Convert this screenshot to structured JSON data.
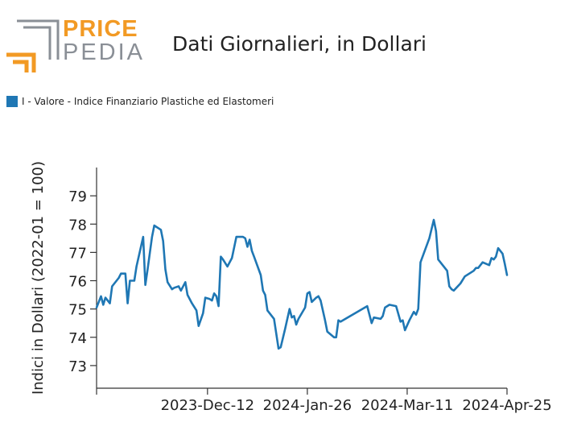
{
  "header": {
    "logo_price": "PRICE",
    "logo_pedia": "PEDIA",
    "title": "Dati Giornalieri, in Dollari"
  },
  "colors": {
    "series": "#1f77b4",
    "logo_orange": "#f29a24",
    "logo_gray": "#8a8f96"
  },
  "chart_data": {
    "type": "line",
    "title": "Dati Giornalieri, in Dollari",
    "ylabel": "Indici in Dollari (2022-01 = 100)",
    "xlabel": "",
    "ylim": [
      72.2,
      80.0
    ],
    "yticks": [
      73,
      74,
      75,
      76,
      77,
      78,
      79
    ],
    "xlim": [
      "2023-10-23",
      "2024-04-25"
    ],
    "xticks": [
      {
        "date": "2023-10-23",
        "label": ""
      },
      {
        "date": "2023-12-12",
        "label": "2023-Dec-12"
      },
      {
        "date": "2024-01-26",
        "label": "2024-Jan-26"
      },
      {
        "date": "2024-03-11",
        "label": "2024-Mar-11"
      },
      {
        "date": "2024-04-25",
        "label": "2024-Apr-25"
      }
    ],
    "grid": false,
    "legend_position": "top-left",
    "series": [
      {
        "name": "I - Valore - Indice Finanziario Plastiche ed Elastomeri",
        "points": [
          [
            "2023-10-23",
            75.05
          ],
          [
            "2023-10-25",
            75.45
          ],
          [
            "2023-10-26",
            75.15
          ],
          [
            "2023-10-27",
            75.4
          ],
          [
            "2023-10-29",
            75.2
          ],
          [
            "2023-10-30",
            75.8
          ],
          [
            "2023-11-02",
            76.1
          ],
          [
            "2023-11-03",
            76.25
          ],
          [
            "2023-11-05",
            76.25
          ],
          [
            "2023-11-06",
            75.2
          ],
          [
            "2023-11-07",
            76.0
          ],
          [
            "2023-11-09",
            76.0
          ],
          [
            "2023-11-10",
            76.5
          ],
          [
            "2023-11-13",
            77.55
          ],
          [
            "2023-11-14",
            75.85
          ],
          [
            "2023-11-15",
            76.4
          ],
          [
            "2023-11-17",
            77.55
          ],
          [
            "2023-11-18",
            77.95
          ],
          [
            "2023-11-21",
            77.8
          ],
          [
            "2023-11-22",
            77.4
          ],
          [
            "2023-11-23",
            76.4
          ],
          [
            "2023-11-24",
            75.95
          ],
          [
            "2023-11-26",
            75.7
          ],
          [
            "2023-11-27",
            75.75
          ],
          [
            "2023-11-29",
            75.8
          ],
          [
            "2023-11-30",
            75.65
          ],
          [
            "2023-12-02",
            75.95
          ],
          [
            "2023-12-03",
            75.5
          ],
          [
            "2023-12-05",
            75.2
          ],
          [
            "2023-12-07",
            74.95
          ],
          [
            "2023-12-08",
            74.4
          ],
          [
            "2023-12-10",
            74.85
          ],
          [
            "2023-12-11",
            75.4
          ],
          [
            "2023-12-13",
            75.35
          ],
          [
            "2023-12-14",
            75.3
          ],
          [
            "2023-12-15",
            75.55
          ],
          [
            "2023-12-16",
            75.45
          ],
          [
            "2023-12-17",
            75.1
          ],
          [
            "2023-12-18",
            76.85
          ],
          [
            "2023-12-19",
            76.75
          ],
          [
            "2023-12-21",
            76.5
          ],
          [
            "2023-12-23",
            76.8
          ],
          [
            "2023-12-25",
            77.55
          ],
          [
            "2023-12-28",
            77.55
          ],
          [
            "2023-12-29",
            77.5
          ],
          [
            "2023-12-30",
            77.2
          ],
          [
            "2023-12-31",
            77.45
          ],
          [
            "2024-01-01",
            77.05
          ],
          [
            "2024-01-02",
            76.85
          ],
          [
            "2024-01-05",
            76.2
          ],
          [
            "2024-01-06",
            75.65
          ],
          [
            "2024-01-07",
            75.5
          ],
          [
            "2024-01-08",
            74.95
          ],
          [
            "2024-01-11",
            74.65
          ],
          [
            "2024-01-13",
            73.6
          ],
          [
            "2024-01-14",
            73.65
          ],
          [
            "2024-01-16",
            74.3
          ],
          [
            "2024-01-18",
            75.0
          ],
          [
            "2024-01-19",
            74.7
          ],
          [
            "2024-01-20",
            74.75
          ],
          [
            "2024-01-21",
            74.45
          ],
          [
            "2024-01-22",
            74.65
          ],
          [
            "2024-01-25",
            75.05
          ],
          [
            "2024-01-26",
            75.55
          ],
          [
            "2024-01-27",
            75.6
          ],
          [
            "2024-01-28",
            75.25
          ],
          [
            "2024-01-30",
            75.4
          ],
          [
            "2024-01-31",
            75.45
          ],
          [
            "2024-02-01",
            75.3
          ],
          [
            "2024-02-03",
            74.6
          ],
          [
            "2024-02-04",
            74.2
          ],
          [
            "2024-02-07",
            74.0
          ],
          [
            "2024-02-08",
            74.0
          ],
          [
            "2024-02-09",
            74.6
          ],
          [
            "2024-02-10",
            74.55
          ],
          [
            "2024-02-22",
            75.1
          ],
          [
            "2024-02-24",
            74.5
          ],
          [
            "2024-02-25",
            74.7
          ],
          [
            "2024-02-28",
            74.65
          ],
          [
            "2024-02-29",
            74.75
          ],
          [
            "2024-03-01",
            75.05
          ],
          [
            "2024-03-03",
            75.15
          ],
          [
            "2024-03-06",
            75.1
          ],
          [
            "2024-03-08",
            74.55
          ],
          [
            "2024-03-09",
            74.6
          ],
          [
            "2024-03-10",
            74.25
          ],
          [
            "2024-03-12",
            74.6
          ],
          [
            "2024-03-14",
            74.9
          ],
          [
            "2024-03-15",
            74.8
          ],
          [
            "2024-03-16",
            75.0
          ],
          [
            "2024-03-17",
            76.65
          ],
          [
            "2024-03-21",
            77.5
          ],
          [
            "2024-03-23",
            78.15
          ],
          [
            "2024-03-24",
            77.75
          ],
          [
            "2024-03-25",
            76.75
          ],
          [
            "2024-03-29",
            76.35
          ],
          [
            "2024-03-30",
            75.8
          ],
          [
            "2024-03-31",
            75.7
          ],
          [
            "2024-04-01",
            75.65
          ],
          [
            "2024-04-04",
            75.9
          ],
          [
            "2024-04-06",
            76.15
          ],
          [
            "2024-04-10",
            76.35
          ],
          [
            "2024-04-11",
            76.45
          ],
          [
            "2024-04-12",
            76.45
          ],
          [
            "2024-04-14",
            76.65
          ],
          [
            "2024-04-17",
            76.55
          ],
          [
            "2024-04-18",
            76.8
          ],
          [
            "2024-04-19",
            76.75
          ],
          [
            "2024-04-20",
            76.85
          ],
          [
            "2024-04-21",
            77.15
          ],
          [
            "2024-04-23",
            76.95
          ],
          [
            "2024-04-24",
            76.6
          ],
          [
            "2024-04-25",
            76.2
          ]
        ]
      }
    ]
  }
}
